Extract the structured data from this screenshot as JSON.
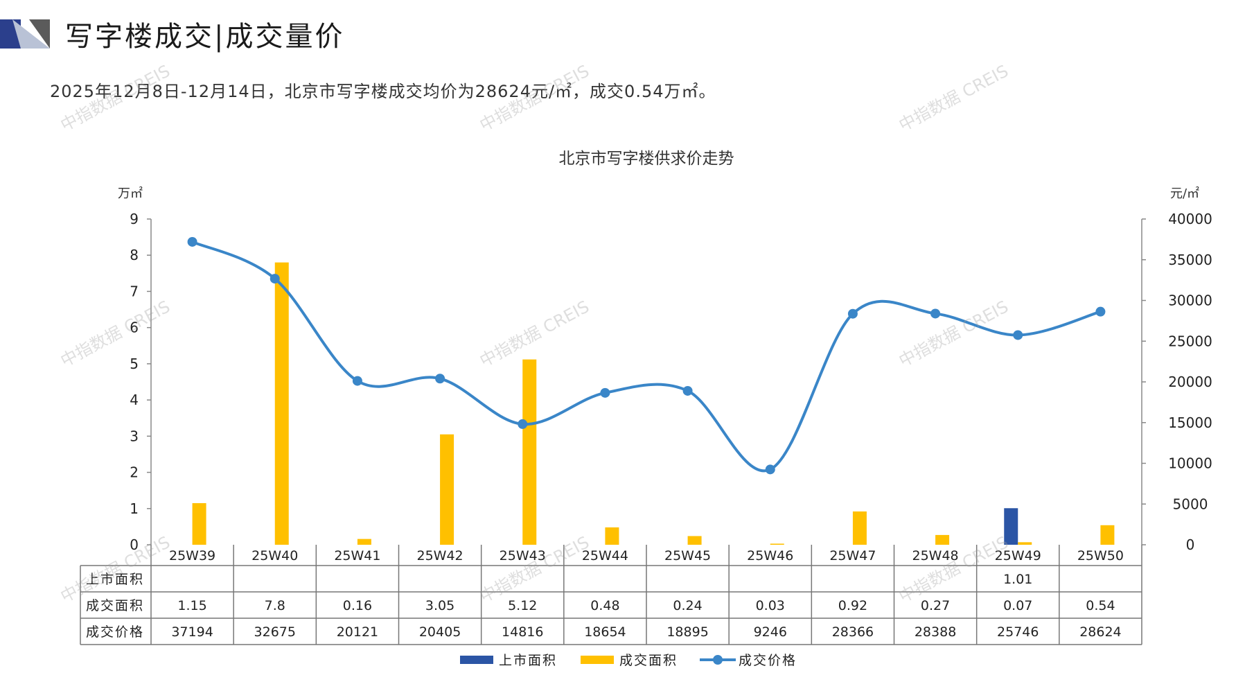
{
  "header": {
    "title": "写字楼成交|成交量价",
    "subtitle": "2025年12月8日-12月14日，北京市写字楼成交均价为28624元/㎡，成交0.54万㎡。"
  },
  "watermark": "中指数据 CREIS",
  "colors": {
    "listed": "#2b55a5",
    "traded": "#ffc000",
    "price": "#3a86c8",
    "grid": "#888888",
    "logo_dark": "#2b3f8c",
    "logo_light": "#b9c2d6"
  },
  "chart_data": {
    "type": "bar",
    "title": "北京市写字楼供求价走势",
    "ylabel": "万㎡",
    "y2label": "元/㎡",
    "ylim": [
      0,
      9
    ],
    "y2lim": [
      0,
      40000
    ],
    "yticks": [
      "0",
      "1",
      "2",
      "3",
      "4",
      "5",
      "6",
      "7",
      "8",
      "9"
    ],
    "y2ticks": [
      "0",
      "5000",
      "10000",
      "15000",
      "20000",
      "25000",
      "30000",
      "35000",
      "40000"
    ],
    "categories": [
      "25W39",
      "25W40",
      "25W41",
      "25W42",
      "25W43",
      "25W44",
      "25W45",
      "25W46",
      "25W47",
      "25W48",
      "25W49",
      "25W50"
    ],
    "series": [
      {
        "name": "上市面积",
        "kind": "bar",
        "axis": "left",
        "values": [
          null,
          null,
          null,
          null,
          null,
          null,
          null,
          null,
          null,
          null,
          1.01,
          null
        ],
        "labels": [
          "",
          "",
          "",
          "",
          "",
          "",
          "",
          "",
          "",
          "",
          "1.01",
          ""
        ]
      },
      {
        "name": "成交面积",
        "kind": "bar",
        "axis": "left",
        "values": [
          1.15,
          7.8,
          0.16,
          3.05,
          5.12,
          0.48,
          0.24,
          0.03,
          0.92,
          0.27,
          0.07,
          0.54
        ],
        "labels": [
          "1.15",
          "7.8",
          "0.16",
          "3.05",
          "5.12",
          "0.48",
          "0.24",
          "0.03",
          "0.92",
          "0.27",
          "0.07",
          "0.54"
        ]
      },
      {
        "name": "成交价格",
        "kind": "line",
        "axis": "right",
        "values": [
          37194,
          32675,
          20121,
          20405,
          14816,
          18654,
          18895,
          9246,
          28366,
          28388,
          25746,
          28624
        ],
        "labels": [
          "37194",
          "32675",
          "20121",
          "20405",
          "14816",
          "18654",
          "18895",
          "9246",
          "28366",
          "28388",
          "25746",
          "28624"
        ]
      }
    ],
    "legend": "bottom",
    "grid": false
  }
}
